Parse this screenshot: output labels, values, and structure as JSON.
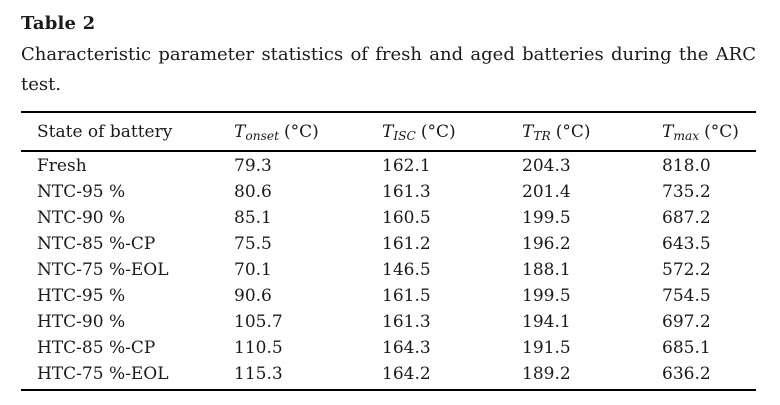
{
  "document": {
    "table_label": "Table 2",
    "caption_full": "Characteristic parameter statistics of fresh and aged batteries during the ARC test.",
    "caption_line1": "Characteristic parameter statistics of fresh and aged batteries during the ARC",
    "caption_line2": "test."
  },
  "table": {
    "columns": [
      {
        "label": "State of battery"
      },
      {
        "symbol": "T",
        "subscript": "onset",
        "unit": "(°C)"
      },
      {
        "symbol": "T",
        "subscript": "ISC",
        "unit": "(°C)"
      },
      {
        "symbol": "T",
        "subscript": "TR",
        "unit": "(°C)"
      },
      {
        "symbol": "T",
        "subscript": "max",
        "unit": "(°C)"
      }
    ],
    "rows": [
      [
        "Fresh",
        "79.3",
        "162.1",
        "204.3",
        "818.0"
      ],
      [
        "NTC-95 %",
        "80.6",
        "161.3",
        "201.4",
        "735.2"
      ],
      [
        "NTC-90 %",
        "85.1",
        "160.5",
        "199.5",
        "687.2"
      ],
      [
        "NTC-85 %-CP",
        "75.5",
        "161.2",
        "196.2",
        "643.5"
      ],
      [
        "NTC-75 %-EOL",
        "70.1",
        "146.5",
        "188.1",
        "572.2"
      ],
      [
        "HTC-95 %",
        "90.6",
        "161.5",
        "199.5",
        "754.5"
      ],
      [
        "HTC-90 %",
        "105.7",
        "161.3",
        "194.1",
        "697.2"
      ],
      [
        "HTC-85 %-CP",
        "110.5",
        "164.3",
        "191.5",
        "685.1"
      ],
      [
        "HTC-75 %-EOL",
        "115.3",
        "164.2",
        "189.2",
        "636.2"
      ]
    ]
  },
  "colors": {
    "text": "#1a1a1a",
    "rule": "#000000",
    "background": "#ffffff"
  }
}
